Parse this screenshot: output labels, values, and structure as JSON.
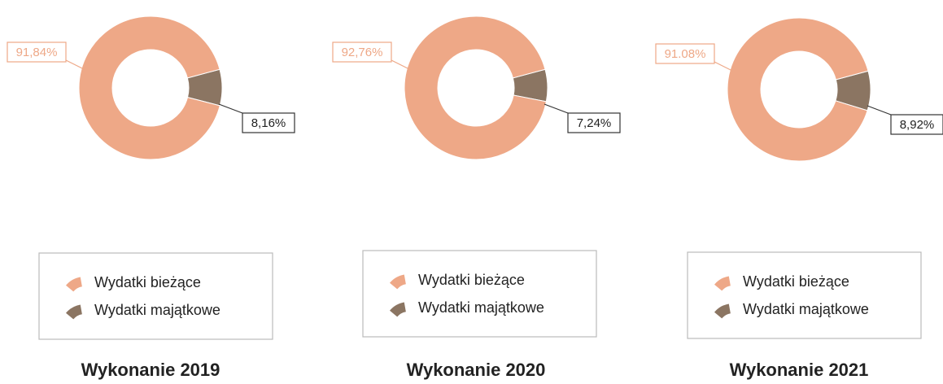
{
  "chart_data": [
    {
      "type": "pie",
      "donut": true,
      "title": "Wykonanie 2019",
      "categories": [
        "Wydatki bieżące",
        "Wydatki majątkowe"
      ],
      "values": [
        91.84,
        8.16
      ],
      "value_labels": [
        "91,84%",
        "8,16%"
      ],
      "colors": [
        "#eea887",
        "#8b7562"
      ]
    },
    {
      "type": "pie",
      "donut": true,
      "title": "Wykonanie 2020",
      "categories": [
        "Wydatki bieżące",
        "Wydatki majątkowe"
      ],
      "values": [
        92.76,
        7.24
      ],
      "value_labels": [
        "92,76%",
        "7,24%"
      ],
      "colors": [
        "#eea887",
        "#8b7562"
      ]
    },
    {
      "type": "pie",
      "donut": true,
      "title": "Wykonanie 2021",
      "categories": [
        "Wydatki bieżące",
        "Wydatki majątkowe"
      ],
      "values": [
        91.08,
        8.92
      ],
      "value_labels": [
        "91.08%",
        "8,92%"
      ],
      "colors": [
        "#eea887",
        "#8b7562"
      ]
    }
  ]
}
